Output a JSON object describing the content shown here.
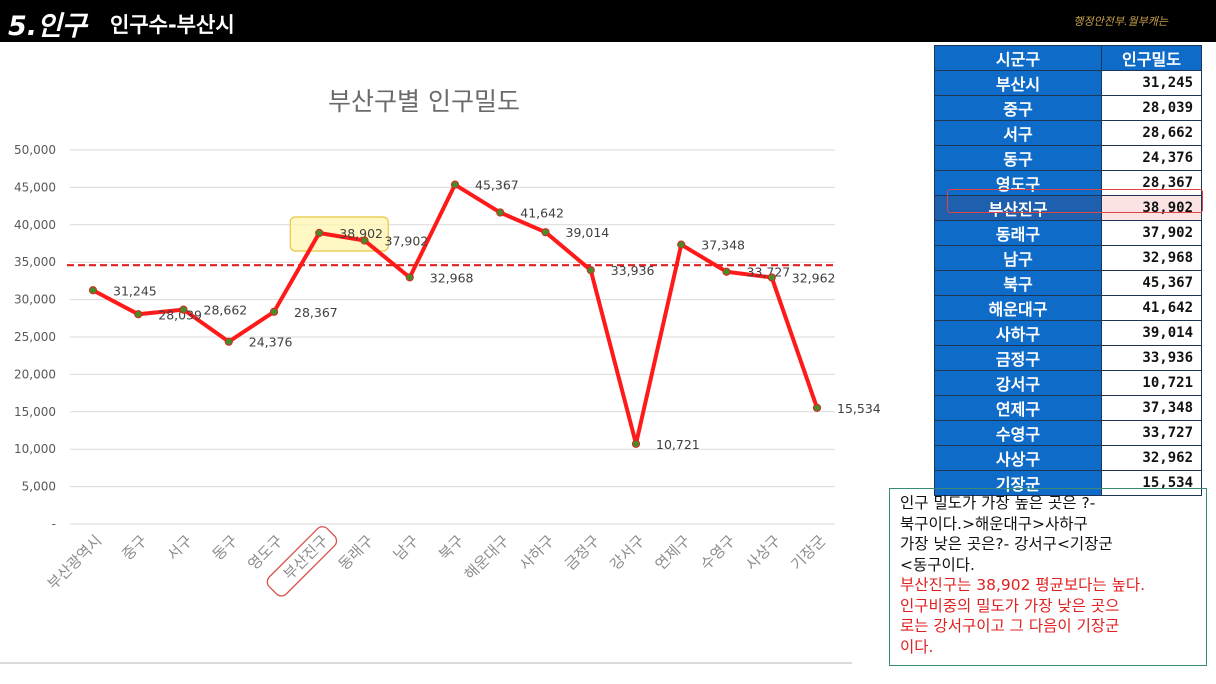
{
  "header": {
    "section_number": "5.인구",
    "section_title": "인구수-부산시",
    "source_note": "행정안전부.월부캐는"
  },
  "chart_data": {
    "type": "line",
    "title": "부산구별 인구밀도",
    "categories": [
      "부산광역시",
      "중구",
      "서구",
      "동구",
      "영도구",
      "부산진구",
      "동래구",
      "남구",
      "북구",
      "해운대구",
      "사하구",
      "금정구",
      "강서구",
      "연제구",
      "수영구",
      "사상구",
      "기장군"
    ],
    "series": [
      {
        "values": [
          31245,
          28039,
          28662,
          24376,
          28367,
          38902,
          37902,
          32968,
          45367,
          41642,
          39014,
          33936,
          10721,
          37348,
          33727,
          32962,
          15534
        ],
        "color": "#ff1a1a"
      }
    ],
    "value_labels": [
      "31,245",
      "28,039",
      "28,662",
      "24,376",
      "28,367",
      "38,902",
      "37,902",
      "32,968",
      "45,367",
      "41,642",
      "39,014",
      "33,936",
      "10,721",
      "37,348",
      "33,727",
      "32,962",
      "15,534"
    ],
    "ylim": [
      0,
      50000
    ],
    "yticks": [
      0,
      5000,
      10000,
      15000,
      20000,
      25000,
      30000,
      35000,
      40000,
      45000,
      50000
    ],
    "ytick_labels": [
      "-",
      "5,000",
      "10,000",
      "15,000",
      "20,000",
      "25,000",
      "30,000",
      "35,000",
      "40,000",
      "45,000",
      "50,000"
    ],
    "reference_line": {
      "value": 34600,
      "style": "dashed",
      "color": "#e02020"
    },
    "highlight_category": "부산진구",
    "grid": true,
    "marker_color": "#4a8a2a"
  },
  "table": {
    "headers": [
      "시군구",
      "인구밀도"
    ],
    "rows": [
      [
        "부산시",
        "31,245"
      ],
      [
        "중구",
        "28,039"
      ],
      [
        "서구",
        "28,662"
      ],
      [
        "동구",
        "24,376"
      ],
      [
        "영도구",
        "28,367"
      ],
      [
        "부산진구",
        "38,902"
      ],
      [
        "동래구",
        "37,902"
      ],
      [
        "남구",
        "32,968"
      ],
      [
        "북구",
        "45,367"
      ],
      [
        "해운대구",
        "41,642"
      ],
      [
        "사하구",
        "39,014"
      ],
      [
        "금정구",
        "33,936"
      ],
      [
        "강서구",
        "10,721"
      ],
      [
        "연제구",
        "37,348"
      ],
      [
        "수영구",
        "33,727"
      ],
      [
        "사상구",
        "32,962"
      ],
      [
        "기장군",
        "15,534"
      ]
    ],
    "highlight_row": 5
  },
  "note": {
    "black_lines": [
      "인구 밀도가 가장 높은 곳은 ?-",
      "북구이다.>해운대구>사하구",
      "가장 낮은 곳은?- 강서구<기장군",
      "<동구이다."
    ],
    "red_lines": [
      "부산진구는 38,902 평균보다는 높다.",
      "인구비중의 밀도가 가장 낮은 곳으",
      "로는 강서구이고 그 다음이 기장군",
      "이다."
    ]
  }
}
